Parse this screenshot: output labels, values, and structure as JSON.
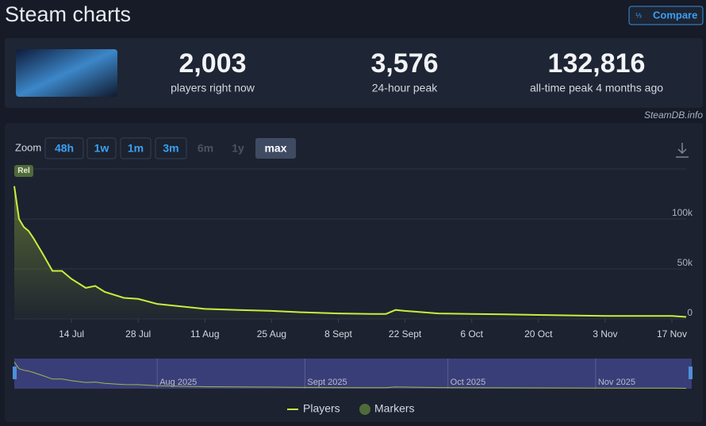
{
  "header": {
    "title": "Steam charts",
    "compare": "Compare"
  },
  "stats": [
    {
      "value": "2,003",
      "label": "players right now"
    },
    {
      "value": "3,576",
      "label": "24-hour peak"
    },
    {
      "value": "132,816",
      "label": "all-time peak 4 months ago"
    }
  ],
  "credit": "SteamDB.info",
  "zoom": {
    "label": "Zoom",
    "buttons": [
      {
        "text": "48h",
        "state": "on"
      },
      {
        "text": "1w",
        "state": "on"
      },
      {
        "text": "1m",
        "state": "on"
      },
      {
        "text": "3m",
        "state": "on"
      },
      {
        "text": "6m",
        "state": "off"
      },
      {
        "text": "1y",
        "state": "off"
      },
      {
        "text": "max",
        "state": "active"
      }
    ]
  },
  "chart_data": {
    "type": "line",
    "x": [
      "2025-07-02",
      "2025-07-03",
      "2025-07-04",
      "2025-07-05",
      "2025-07-06",
      "2025-07-08",
      "2025-07-10",
      "2025-07-12",
      "2025-07-14",
      "2025-07-17",
      "2025-07-19",
      "2025-07-21",
      "2025-07-25",
      "2025-07-28",
      "2025-08-01",
      "2025-08-05",
      "2025-08-11",
      "2025-08-18",
      "2025-08-25",
      "2025-09-01",
      "2025-09-08",
      "2025-09-15",
      "2025-09-18",
      "2025-09-20",
      "2025-09-22",
      "2025-09-29",
      "2025-10-06",
      "2025-10-13",
      "2025-10-20",
      "2025-10-27",
      "2025-11-03",
      "2025-11-10",
      "2025-11-17",
      "2025-11-20"
    ],
    "series": [
      {
        "name": "Players",
        "color": "#c8ef3c",
        "values": [
          132816,
          100000,
          92000,
          88000,
          81000,
          65000,
          48000,
          48000,
          40000,
          31000,
          33000,
          27000,
          21000,
          20000,
          15000,
          13000,
          10000,
          9000,
          8000,
          6500,
          5500,
          5000,
          5000,
          9000,
          8000,
          5500,
          5000,
          4500,
          4000,
          3500,
          3000,
          3000,
          3000,
          2003
        ]
      }
    ],
    "markers": [
      {
        "name": "Markers",
        "color": "#4f6b3a",
        "x": "2025-07-02",
        "label": "Rel"
      }
    ],
    "xlim": [
      "2025-07-02",
      "2025-11-20"
    ],
    "xticks": [
      {
        "value": "2025-07-14",
        "label": "14 Jul"
      },
      {
        "value": "2025-07-28",
        "label": "28 Jul"
      },
      {
        "value": "2025-08-11",
        "label": "11 Aug"
      },
      {
        "value": "2025-08-25",
        "label": "25 Aug"
      },
      {
        "value": "2025-09-08",
        "label": "8 Sept"
      },
      {
        "value": "2025-09-22",
        "label": "22 Sept"
      },
      {
        "value": "2025-10-06",
        "label": "6 Oct"
      },
      {
        "value": "2025-10-20",
        "label": "20 Oct"
      },
      {
        "value": "2025-11-03",
        "label": "3 Nov"
      },
      {
        "value": "2025-11-17",
        "label": "17 Nov"
      }
    ],
    "ylim": [
      0,
      150000
    ],
    "yticks": [
      0,
      {
        "value": 50000,
        "label": "50k"
      },
      {
        "value": 100000,
        "label": "100k"
      }
    ],
    "grid": true,
    "navigator": [
      {
        "value": "2025-08-01",
        "label": "Aug 2025"
      },
      {
        "value": "2025-09-01",
        "label": "Sept 2025"
      },
      {
        "value": "2025-10-01",
        "label": "Oct 2025"
      },
      {
        "value": "2025-11-01",
        "label": "Nov 2025"
      }
    ]
  }
}
